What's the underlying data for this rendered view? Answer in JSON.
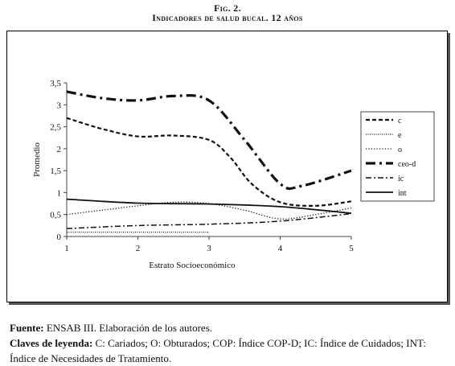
{
  "figure": {
    "label": "Fig. 2.",
    "title": "Indicadores de salud bucal. 12 años"
  },
  "chart_data": {
    "type": "line",
    "x": [
      1,
      2,
      3,
      4,
      5
    ],
    "xlabel": "Estrato Socioeconómico",
    "ylabel": "Promedio",
    "xlim": [
      1,
      5
    ],
    "ylim": [
      0,
      3.5
    ],
    "xticks": [
      "1",
      "2",
      "3",
      "4",
      "5"
    ],
    "yticks": [
      "0",
      "0,5",
      "1",
      "1,5",
      "2",
      "2,5",
      "3",
      "3,5"
    ],
    "grid": false,
    "legend_position": "right",
    "series": [
      {
        "name": "c",
        "style": "dashed",
        "points": [
          [
            1,
            2.7
          ],
          [
            1.5,
            2.45
          ],
          [
            2,
            2.28
          ],
          [
            2.5,
            2.3
          ],
          [
            3,
            2.2
          ],
          [
            3.3,
            1.8
          ],
          [
            3.6,
            1.2
          ],
          [
            4,
            0.78
          ],
          [
            4.5,
            0.7
          ],
          [
            5,
            0.8
          ]
        ]
      },
      {
        "name": "e",
        "style": "dotted-fine",
        "points": [
          [
            1,
            0.1
          ],
          [
            3,
            0.1
          ]
        ]
      },
      {
        "name": "o",
        "style": "dotted",
        "points": [
          [
            1,
            0.5
          ],
          [
            1.5,
            0.6
          ],
          [
            2,
            0.7
          ],
          [
            2.5,
            0.78
          ],
          [
            3,
            0.75
          ],
          [
            3.5,
            0.6
          ],
          [
            4,
            0.4
          ],
          [
            4.5,
            0.5
          ],
          [
            5,
            0.65
          ]
        ]
      },
      {
        "name": "ceo-d",
        "style": "dash-dot-bold",
        "points": [
          [
            1,
            3.3
          ],
          [
            1.5,
            3.15
          ],
          [
            2,
            3.1
          ],
          [
            2.5,
            3.2
          ],
          [
            3,
            3.1
          ],
          [
            3.5,
            2.2
          ],
          [
            4,
            1.2
          ],
          [
            4.3,
            1.15
          ],
          [
            5,
            1.5
          ]
        ]
      },
      {
        "name": "ic",
        "style": "dash-dot",
        "points": [
          [
            1,
            0.18
          ],
          [
            2,
            0.25
          ],
          [
            3,
            0.28
          ],
          [
            4,
            0.35
          ],
          [
            5,
            0.52
          ]
        ]
      },
      {
        "name": "int",
        "style": "solid",
        "points": [
          [
            1,
            0.85
          ],
          [
            2,
            0.76
          ],
          [
            3,
            0.74
          ],
          [
            4,
            0.68
          ],
          [
            5,
            0.53
          ]
        ]
      }
    ]
  },
  "notes": {
    "source_label": "Fuente:",
    "source_text": "ENSAB III. Elaboración de los autores.",
    "key_label": "Claves de leyenda:",
    "key_text": "C: Cariados; O: Obturados; COP: Índice COP-D; IC: Índice de Cuidados; INT: Índice de Necesidades de Tratamiento."
  }
}
